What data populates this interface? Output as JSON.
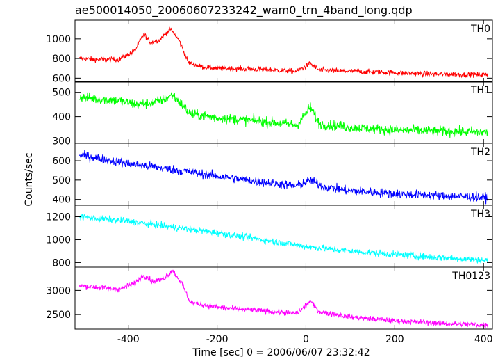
{
  "chart_data": {
    "type": "line",
    "title": "ae500014050_20060607233242_wam0_trn_4band_long.qdp",
    "xlabel": "Time [sec] 0 = 2006/06/07 23:32:42",
    "ylabel": "Counts/sec",
    "xlim": [
      -520,
      420
    ],
    "xticks": [
      -400,
      -200,
      0,
      200,
      400
    ],
    "grid": false,
    "legend": "none",
    "panels": [
      {
        "name": "TH0",
        "color": "#ff0000",
        "ylim": [
          560,
          1190
        ],
        "yticks": [
          600,
          800,
          1000
        ],
        "noise": 25,
        "series": [
          {
            "x": -510,
            "y": 800
          },
          {
            "x": -470,
            "y": 790
          },
          {
            "x": -420,
            "y": 790
          },
          {
            "x": -385,
            "y": 880
          },
          {
            "x": -365,
            "y": 1050
          },
          {
            "x": -350,
            "y": 960
          },
          {
            "x": -330,
            "y": 990
          },
          {
            "x": -305,
            "y": 1100
          },
          {
            "x": -285,
            "y": 980
          },
          {
            "x": -265,
            "y": 760
          },
          {
            "x": -240,
            "y": 720
          },
          {
            "x": -200,
            "y": 700
          },
          {
            "x": -100,
            "y": 690
          },
          {
            "x": -20,
            "y": 670
          },
          {
            "x": 10,
            "y": 750
          },
          {
            "x": 30,
            "y": 680
          },
          {
            "x": 100,
            "y": 670
          },
          {
            "x": 200,
            "y": 655
          },
          {
            "x": 300,
            "y": 640
          },
          {
            "x": 410,
            "y": 635
          }
        ]
      },
      {
        "name": "TH1",
        "color": "#00ff00",
        "ylim": [
          290,
          545
        ],
        "yticks": [
          300,
          400,
          500
        ],
        "noise": 20,
        "series": [
          {
            "x": -510,
            "y": 480
          },
          {
            "x": -420,
            "y": 465
          },
          {
            "x": -380,
            "y": 450
          },
          {
            "x": -350,
            "y": 455
          },
          {
            "x": -320,
            "y": 470
          },
          {
            "x": -300,
            "y": 490
          },
          {
            "x": -280,
            "y": 450
          },
          {
            "x": -260,
            "y": 410
          },
          {
            "x": -200,
            "y": 395
          },
          {
            "x": -100,
            "y": 380
          },
          {
            "x": -20,
            "y": 365
          },
          {
            "x": 10,
            "y": 440
          },
          {
            "x": 30,
            "y": 370
          },
          {
            "x": 100,
            "y": 355
          },
          {
            "x": 200,
            "y": 345
          },
          {
            "x": 300,
            "y": 340
          },
          {
            "x": 410,
            "y": 335
          }
        ]
      },
      {
        "name": "TH2",
        "color": "#0000ff",
        "ylim": [
          370,
          690
        ],
        "yticks": [
          400,
          500,
          600
        ],
        "noise": 22,
        "series": [
          {
            "x": -510,
            "y": 630
          },
          {
            "x": -400,
            "y": 585
          },
          {
            "x": -300,
            "y": 555
          },
          {
            "x": -200,
            "y": 520
          },
          {
            "x": -100,
            "y": 490
          },
          {
            "x": -20,
            "y": 470
          },
          {
            "x": 10,
            "y": 500
          },
          {
            "x": 40,
            "y": 465
          },
          {
            "x": 100,
            "y": 445
          },
          {
            "x": 200,
            "y": 430
          },
          {
            "x": 300,
            "y": 420
          },
          {
            "x": 410,
            "y": 410
          }
        ]
      },
      {
        "name": "TH3",
        "color": "#00ffff",
        "ylim": [
          760,
          1300
        ],
        "yticks": [
          800,
          1000,
          1200
        ],
        "noise": 28,
        "series": [
          {
            "x": -510,
            "y": 1200
          },
          {
            "x": -400,
            "y": 1160
          },
          {
            "x": -300,
            "y": 1110
          },
          {
            "x": -200,
            "y": 1060
          },
          {
            "x": -100,
            "y": 1000
          },
          {
            "x": 0,
            "y": 940
          },
          {
            "x": 100,
            "y": 900
          },
          {
            "x": 200,
            "y": 870
          },
          {
            "x": 300,
            "y": 845
          },
          {
            "x": 410,
            "y": 820
          }
        ]
      },
      {
        "name": "TH0123",
        "color": "#ff00ff",
        "ylim": [
          2200,
          3480
        ],
        "yticks": [
          2500,
          3000
        ],
        "noise": 55,
        "series": [
          {
            "x": -510,
            "y": 3100
          },
          {
            "x": -420,
            "y": 3020
          },
          {
            "x": -385,
            "y": 3150
          },
          {
            "x": -365,
            "y": 3320
          },
          {
            "x": -345,
            "y": 3180
          },
          {
            "x": -320,
            "y": 3250
          },
          {
            "x": -300,
            "y": 3420
          },
          {
            "x": -280,
            "y": 3150
          },
          {
            "x": -260,
            "y": 2750
          },
          {
            "x": -200,
            "y": 2650
          },
          {
            "x": -100,
            "y": 2580
          },
          {
            "x": -20,
            "y": 2520
          },
          {
            "x": 10,
            "y": 2780
          },
          {
            "x": 30,
            "y": 2560
          },
          {
            "x": 100,
            "y": 2450
          },
          {
            "x": 200,
            "y": 2370
          },
          {
            "x": 300,
            "y": 2320
          },
          {
            "x": 410,
            "y": 2280
          }
        ]
      }
    ]
  }
}
